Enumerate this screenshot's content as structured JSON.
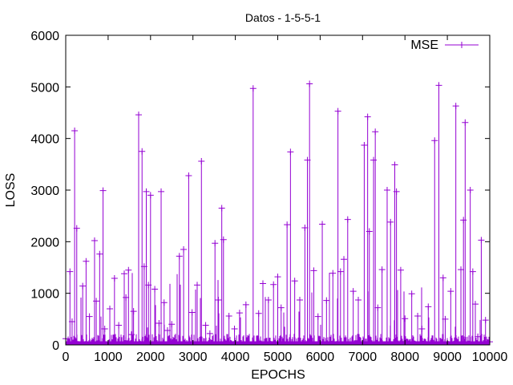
{
  "chart_data": {
    "type": "line",
    "title": "Datos - 1-5-5-1",
    "xlabel": "EPOCHS",
    "ylabel": "LOSS",
    "xlim": [
      0,
      10000
    ],
    "ylim": [
      0,
      6000
    ],
    "xticks": [
      "0",
      "1000",
      "2000",
      "3000",
      "4000",
      "5000",
      "6000",
      "7000",
      "8000",
      "9000",
      "10000"
    ],
    "yticks": [
      "0",
      "1000",
      "2000",
      "3000",
      "4000",
      "5000",
      "6000"
    ],
    "grid": false,
    "legend_position": "top-right",
    "colors": {
      "series": "#9400d3",
      "axes": "#000000",
      "background": "#ffffff"
    },
    "series": [
      {
        "name": "MSE",
        "marker": "plus",
        "x": [
          0,
          100,
          150,
          210,
          260,
          400,
          480,
          560,
          680,
          720,
          800,
          880,
          920,
          1040,
          1150,
          1250,
          1380,
          1420,
          1480,
          1550,
          1600,
          1720,
          1800,
          1850,
          1900,
          1950,
          2000,
          2100,
          2200,
          2250,
          2320,
          2400,
          2500,
          2680,
          2780,
          2900,
          2980,
          3100,
          3200,
          3300,
          3400,
          3520,
          3600,
          3680,
          3720,
          3850,
          3980,
          4100,
          4250,
          4420,
          4550,
          4650,
          4780,
          4900,
          5000,
          5080,
          5220,
          5300,
          5400,
          5520,
          5640,
          5700,
          5750,
          5850,
          5950,
          6050,
          6150,
          6300,
          6420,
          6480,
          6560,
          6650,
          6780,
          6900,
          7040,
          7120,
          7160,
          7260,
          7300,
          7360,
          7460,
          7580,
          7660,
          7760,
          7800,
          7900,
          8000,
          8160,
          8300,
          8400,
          8550,
          8700,
          8800,
          8900,
          8950,
          9080,
          9200,
          9320,
          9380,
          9420,
          9540,
          9600,
          9660,
          9720,
          9800,
          9900,
          10000
        ],
        "y": [
          120,
          1420,
          450,
          4150,
          2260,
          1140,
          1620,
          550,
          2020,
          850,
          1760,
          2990,
          310,
          700,
          1290,
          380,
          1380,
          920,
          1450,
          200,
          650,
          4460,
          3750,
          1520,
          2970,
          1160,
          2900,
          1080,
          420,
          2970,
          820,
          280,
          400,
          1720,
          1850,
          3280,
          630,
          1160,
          3560,
          380,
          220,
          1970,
          870,
          2650,
          2040,
          560,
          310,
          620,
          780,
          4970,
          610,
          1190,
          870,
          1170,
          1320,
          720,
          2330,
          3740,
          1240,
          870,
          2270,
          3580,
          5060,
          1440,
          550,
          2340,
          860,
          1390,
          4530,
          1420,
          1660,
          2430,
          1040,
          870,
          3870,
          4420,
          2200,
          3580,
          4130,
          720,
          1460,
          3000,
          2380,
          3490,
          2970,
          1450,
          510,
          990,
          560,
          310,
          740,
          3960,
          5030,
          1300,
          500,
          1040,
          4630,
          1460,
          2420,
          4310,
          3000,
          1420,
          790,
          160,
          2030,
          480,
          60
        ]
      }
    ]
  }
}
